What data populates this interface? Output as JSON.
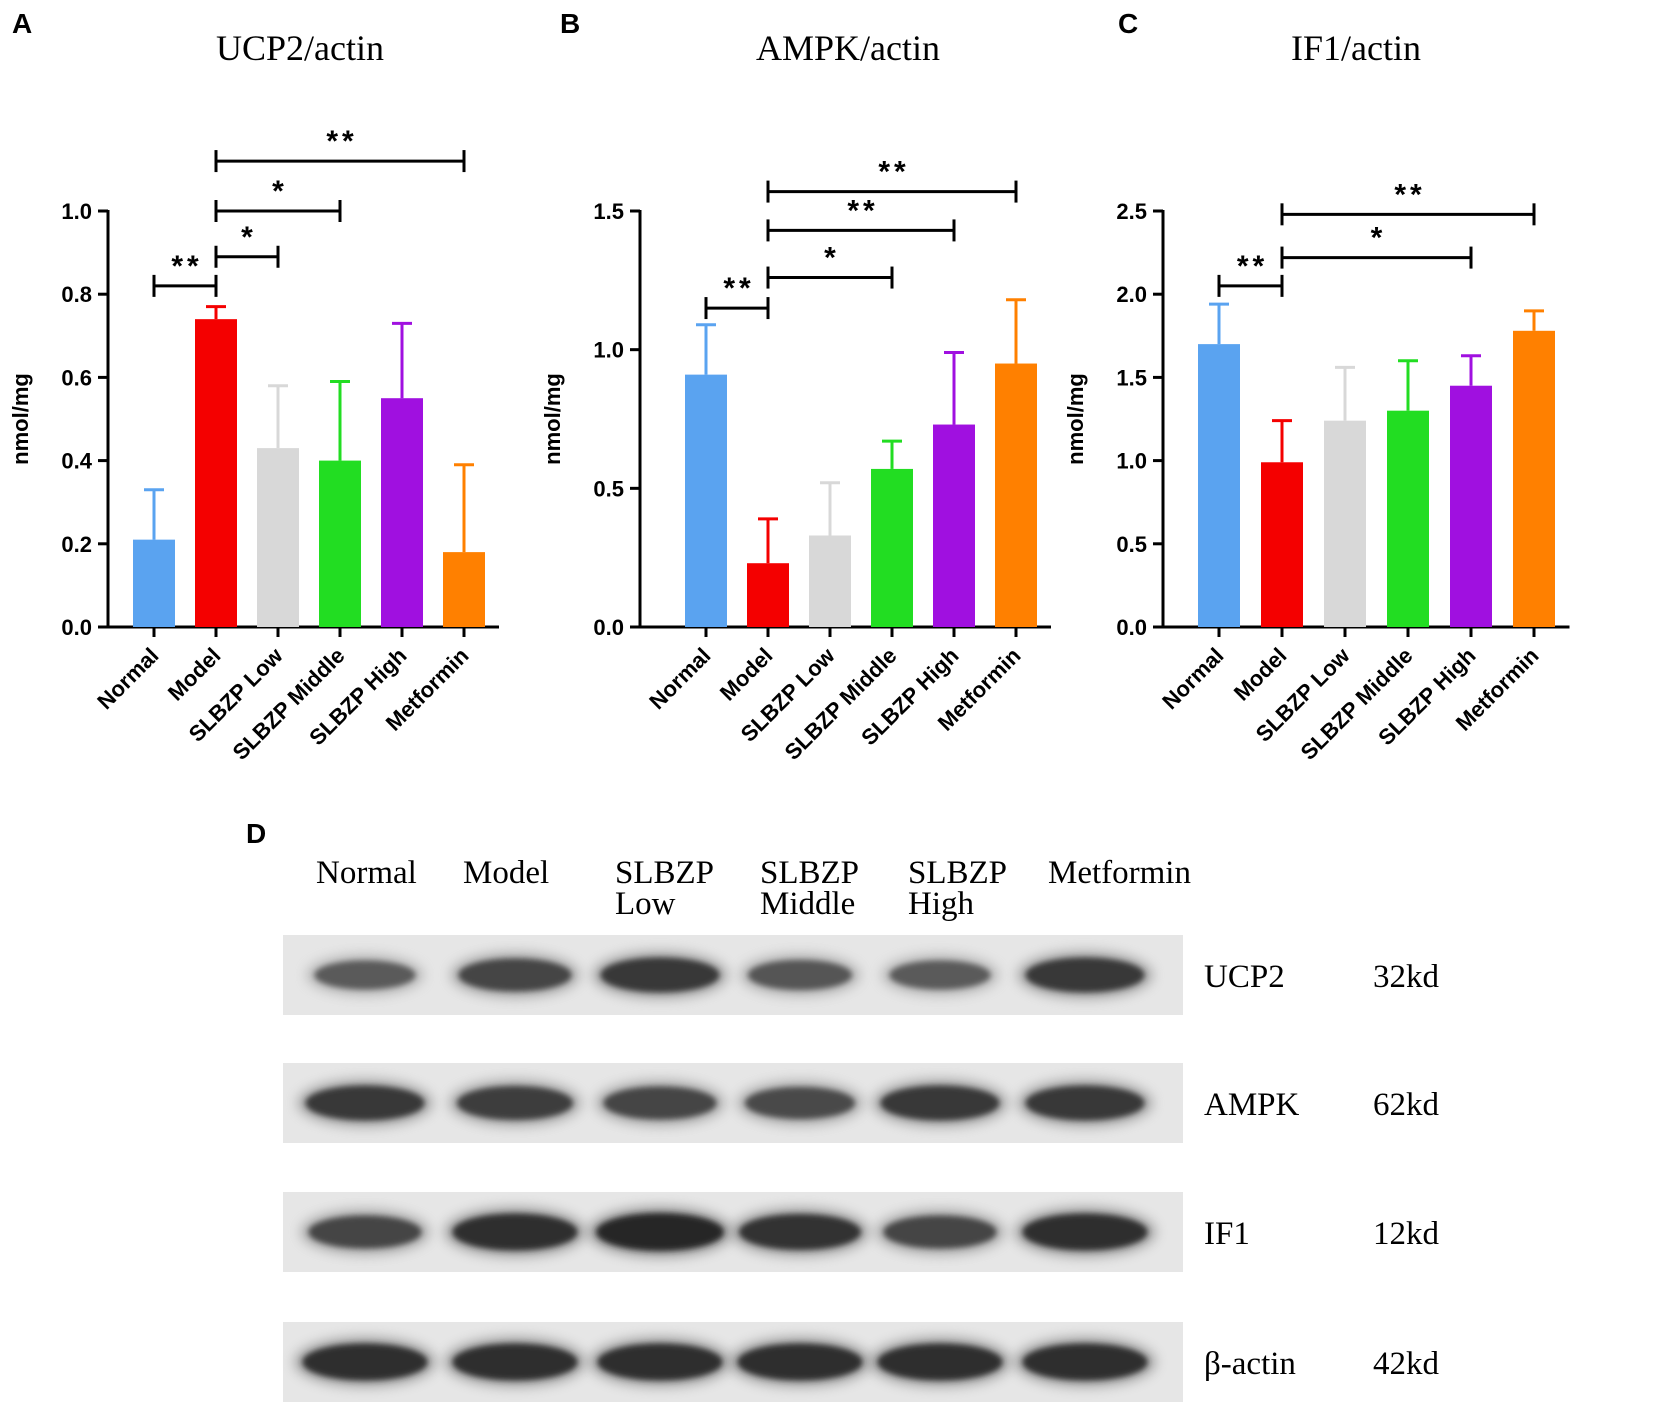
{
  "panel_d_letter": "D",
  "chart_data": [
    {
      "panel": "A",
      "type": "bar",
      "title": "UCP2/actin",
      "ylabel": "nmol/mg",
      "ylim": [
        0,
        1.0
      ],
      "yticks": [
        "0.0",
        "0.2",
        "0.4",
        "0.6",
        "0.8",
        "1.0"
      ],
      "categories": [
        "Normal",
        "Model",
        "SLBZP Low",
        "SLBZP Middle",
        "SLBZP High",
        "Metformin"
      ],
      "values": [
        0.21,
        0.74,
        0.43,
        0.4,
        0.55,
        0.18
      ],
      "errors": [
        0.12,
        0.03,
        0.15,
        0.19,
        0.18,
        0.21
      ],
      "colors": [
        "#5aa3f0",
        "#f40000",
        "#d8d8d8",
        "#22dd22",
        "#a010e0",
        "#ff8000"
      ],
      "significance": [
        {
          "from": 0,
          "to": 1,
          "label": "**",
          "y": 0.82
        },
        {
          "from": 1,
          "to": 2,
          "label": "*",
          "y": 0.89
        },
        {
          "from": 1,
          "to": 3,
          "label": "*",
          "y": 1.0
        },
        {
          "from": 1,
          "to": 5,
          "label": "**",
          "y": 1.12
        }
      ]
    },
    {
      "panel": "B",
      "type": "bar",
      "title": "AMPK/actin",
      "ylabel": "nmol/mg",
      "ylim": [
        0,
        1.5
      ],
      "yticks": [
        "0.0",
        "0.5",
        "1.0",
        "1.5"
      ],
      "categories": [
        "Normal",
        "Model",
        "SLBZP Low",
        "SLBZP Middle",
        "SLBZP High",
        "Metformin"
      ],
      "values": [
        0.91,
        0.23,
        0.33,
        0.57,
        0.73,
        0.95
      ],
      "errors": [
        0.18,
        0.16,
        0.19,
        0.1,
        0.26,
        0.23
      ],
      "colors": [
        "#5aa3f0",
        "#f40000",
        "#d8d8d8",
        "#22dd22",
        "#a010e0",
        "#ff8000"
      ],
      "significance": [
        {
          "from": 0,
          "to": 1,
          "label": "**",
          "y": 1.15
        },
        {
          "from": 1,
          "to": 3,
          "label": "*",
          "y": 1.26
        },
        {
          "from": 1,
          "to": 4,
          "label": "**",
          "y": 1.43
        },
        {
          "from": 1,
          "to": 5,
          "label": "**",
          "y": 1.57
        }
      ]
    },
    {
      "panel": "C",
      "type": "bar",
      "title": "IF1/actin",
      "ylabel": "nmol/mg",
      "ylim": [
        0,
        2.5
      ],
      "yticks": [
        "0.0",
        "0.5",
        "1.0",
        "1.5",
        "2.0",
        "2.5"
      ],
      "categories": [
        "Normal",
        "Model",
        "SLBZP Low",
        "SLBZP Middle",
        "SLBZP High",
        "Metformin"
      ],
      "values": [
        1.7,
        0.99,
        1.24,
        1.3,
        1.45,
        1.78
      ],
      "errors": [
        0.24,
        0.25,
        0.32,
        0.3,
        0.18,
        0.12
      ],
      "colors": [
        "#5aa3f0",
        "#f40000",
        "#d8d8d8",
        "#22dd22",
        "#a010e0",
        "#ff8000"
      ],
      "significance": [
        {
          "from": 0,
          "to": 1,
          "label": "**",
          "y": 2.05
        },
        {
          "from": 1,
          "to": 4,
          "label": "*",
          "y": 2.22
        },
        {
          "from": 1,
          "to": 5,
          "label": "**",
          "y": 2.48
        }
      ]
    }
  ],
  "blot": {
    "lanes": [
      [
        "Normal"
      ],
      [
        "Model"
      ],
      [
        "SLBZP",
        "Low"
      ],
      [
        "SLBZP",
        "Middle"
      ],
      [
        "SLBZP",
        "High"
      ],
      [
        "Metformin"
      ]
    ],
    "rows": [
      {
        "protein": "UCP2",
        "size": "32kd",
        "intensity": [
          0.55,
          0.75,
          0.85,
          0.6,
          0.55,
          0.85
        ]
      },
      {
        "protein": "AMPK",
        "size": "62kd",
        "intensity": [
          0.85,
          0.8,
          0.75,
          0.7,
          0.85,
          0.85
        ]
      },
      {
        "protein": "IF1",
        "size": "12kd",
        "intensity": [
          0.75,
          0.95,
          1.0,
          0.9,
          0.75,
          0.95
        ]
      },
      {
        "protein": "β-actin",
        "size": "42kd",
        "intensity": [
          0.95,
          0.95,
          0.95,
          0.95,
          0.95,
          0.95
        ]
      }
    ]
  }
}
